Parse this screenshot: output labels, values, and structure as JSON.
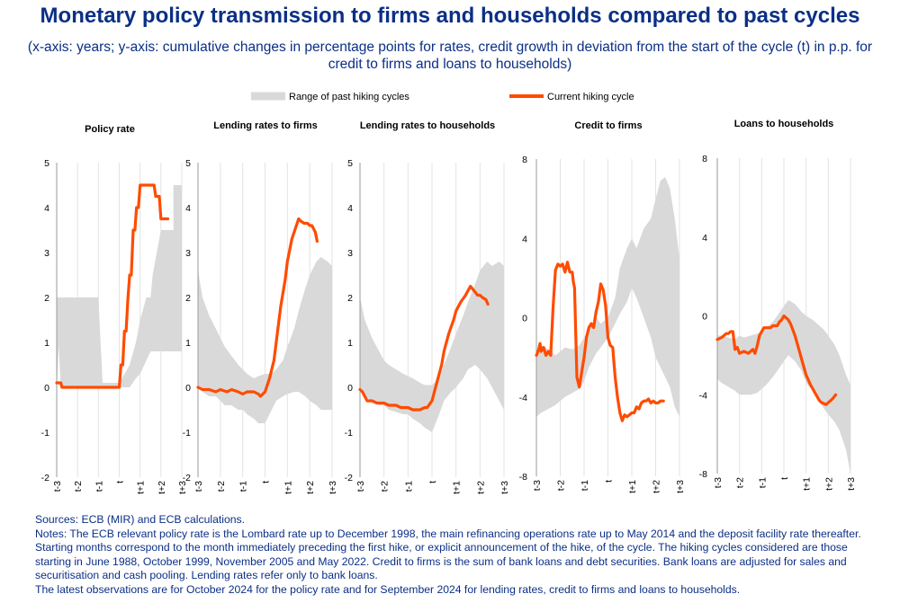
{
  "title": "Monetary policy transmission to firms and households compared to past cycles",
  "subtitle": "(x-axis: years; y-axis: cumulative changes in percentage points for rates, credit growth in deviation from the start of the cycle (t) in p.p. for credit to firms and loans to households)",
  "legend": {
    "range_label": "Range of past hiking cycles",
    "current_label": "Current hiking cycle",
    "range_color": "#d9d9d9",
    "current_color": "#ff4b00"
  },
  "notes": {
    "sources": "Sources: ECB (MIR) and ECB calculations.",
    "body": "Notes: The ECB relevant policy rate is the Lombard rate up to December 1998, the main refinancing operations rate up to May 2014 and the deposit facility rate thereafter. Starting months correspond to the month immediately preceding the first hike, or explicit announcement of the hike, of the cycle. The hiking cycles considered are those starting in June 1988, October 1999, November 2005 and May 2022. Credit to firms is the sum of bank loans and debt securities. Bank loans are adjusted for sales and securitisation and cash pooling. Lending rates refer only to bank loans.",
    "latest": "The latest observations are for October 2024 for the policy rate and for September 2024 for lending rates, credit to firms and loans to households."
  },
  "chart_data": [
    {
      "type": "area",
      "title": "Policy rate",
      "categories": [
        "t-3",
        "t-2",
        "t-1",
        "t",
        "t+1",
        "t+2",
        "t+3"
      ],
      "x_range": [
        -3,
        3
      ],
      "ylim": [
        -2,
        5
      ],
      "yticks": [
        -2,
        -1,
        0,
        1,
        2,
        3,
        4,
        5
      ],
      "grid": "vertical",
      "range_band": {
        "x": [
          -3,
          -2.9,
          -2.8,
          -1.0,
          -1.0,
          -0.8,
          0,
          0.5,
          0.8,
          1.0,
          1.3,
          1.5,
          1.6,
          1.8,
          2.0,
          2.3,
          2.6,
          2.6,
          3.0
        ],
        "upper": [
          2.0,
          2.0,
          2.0,
          2.0,
          2.0,
          0.1,
          0.1,
          0.5,
          1.0,
          1.5,
          2.0,
          2.0,
          2.5,
          3.0,
          3.5,
          3.5,
          3.5,
          4.5,
          4.5
        ],
        "lower": [
          0.0,
          0.9,
          0.0,
          0.0,
          0.0,
          0.0,
          0.0,
          0.0,
          0.2,
          0.3,
          0.6,
          0.8,
          0.8,
          0.8,
          0.8,
          0.8,
          0.8,
          0.8,
          0.8
        ]
      },
      "current": {
        "x": [
          -3.0,
          -2.8,
          -2.75,
          -2.5,
          -2.0,
          -1.5,
          -1.0,
          -0.5,
          0,
          0.08,
          0.17,
          0.25,
          0.33,
          0.42,
          0.5,
          0.58,
          0.67,
          0.75,
          0.83,
          0.92,
          1.0,
          1.08,
          1.17,
          1.25,
          1.33,
          1.42,
          1.5,
          1.58,
          1.67,
          1.75,
          1.83,
          1.92,
          2.0,
          2.08,
          2.17,
          2.25,
          2.33
        ],
        "values": [
          0.1,
          0.1,
          0.0,
          0.0,
          0.0,
          0.0,
          0.0,
          0.0,
          0.0,
          0.5,
          0.5,
          1.25,
          1.25,
          2.0,
          2.5,
          2.5,
          3.5,
          3.5,
          4.0,
          4.0,
          4.5,
          4.5,
          4.5,
          4.5,
          4.5,
          4.5,
          4.5,
          4.5,
          4.5,
          4.25,
          4.25,
          4.25,
          3.75,
          3.75,
          3.75,
          3.75,
          3.75
        ]
      }
    },
    {
      "type": "area",
      "title": "Lending rates to firms",
      "categories": [
        "t-3",
        "t-2",
        "t-1",
        "t",
        "t+1",
        "t+2",
        "t+3"
      ],
      "x_range": [
        -3,
        3
      ],
      "ylim": [
        -2,
        5
      ],
      "yticks": [
        -2,
        -1,
        0,
        1,
        2,
        3,
        4,
        5
      ],
      "grid": "vertical",
      "range_band": {
        "x": [
          -3.0,
          -2.8,
          -2.5,
          -2.2,
          -2.0,
          -1.8,
          -1.5,
          -1.2,
          -1.0,
          -0.8,
          -0.5,
          -0.3,
          0,
          0.3,
          0.5,
          0.8,
          1.0,
          1.3,
          1.5,
          1.8,
          2.0,
          2.3,
          2.5,
          2.8,
          3.0
        ],
        "upper": [
          2.6,
          2.0,
          1.6,
          1.3,
          1.1,
          0.9,
          0.7,
          0.5,
          0.4,
          0.3,
          0.2,
          0.25,
          0.3,
          0.3,
          0.4,
          0.6,
          0.9,
          1.3,
          1.7,
          2.2,
          2.5,
          2.8,
          2.9,
          2.8,
          2.7
        ],
        "lower": [
          0.0,
          -0.1,
          -0.2,
          -0.2,
          -0.3,
          -0.4,
          -0.4,
          -0.5,
          -0.5,
          -0.6,
          -0.7,
          -0.8,
          -0.8,
          -0.5,
          -0.3,
          -0.2,
          -0.15,
          -0.1,
          -0.1,
          -0.2,
          -0.3,
          -0.4,
          -0.5,
          -0.5,
          -0.5
        ]
      },
      "current": {
        "x": [
          -3.0,
          -2.8,
          -2.5,
          -2.2,
          -2.0,
          -1.7,
          -1.5,
          -1.2,
          -1.0,
          -0.8,
          -0.5,
          -0.3,
          -0.2,
          0,
          0.2,
          0.4,
          0.5,
          0.7,
          0.9,
          1.0,
          1.2,
          1.4,
          1.5,
          1.6,
          1.75,
          1.9,
          2.0,
          2.1,
          2.25,
          2.33
        ],
        "values": [
          0.0,
          -0.05,
          -0.05,
          -0.1,
          -0.05,
          -0.1,
          -0.05,
          -0.1,
          -0.15,
          -0.1,
          -0.1,
          -0.15,
          -0.2,
          -0.1,
          0.2,
          0.6,
          1.0,
          1.8,
          2.4,
          2.8,
          3.3,
          3.6,
          3.75,
          3.7,
          3.65,
          3.65,
          3.6,
          3.6,
          3.45,
          3.25
        ]
      }
    },
    {
      "type": "area",
      "title": "Lending rates to households",
      "categories": [
        "t-3",
        "t-2",
        "t-1",
        "t",
        "t+1",
        "t+2",
        "t+3"
      ],
      "x_range": [
        -3,
        3
      ],
      "ylim": [
        -2,
        5
      ],
      "yticks": [
        -2,
        -1,
        0,
        1,
        2,
        3,
        4,
        5
      ],
      "grid": "vertical",
      "range_band": {
        "x": [
          -3.0,
          -2.8,
          -2.5,
          -2.2,
          -2.0,
          -1.8,
          -1.5,
          -1.2,
          -1.0,
          -0.8,
          -0.5,
          -0.3,
          0,
          0.3,
          0.5,
          0.8,
          1.0,
          1.3,
          1.5,
          1.8,
          2.0,
          2.3,
          2.5,
          2.8,
          3.0
        ],
        "upper": [
          2.0,
          1.5,
          1.1,
          0.8,
          0.6,
          0.5,
          0.4,
          0.3,
          0.25,
          0.2,
          0.1,
          0.05,
          0.05,
          0.2,
          0.5,
          0.9,
          1.2,
          1.6,
          1.9,
          2.3,
          2.6,
          2.8,
          2.7,
          2.8,
          2.7
        ],
        "lower": [
          0.0,
          -0.2,
          -0.3,
          -0.4,
          -0.4,
          -0.5,
          -0.55,
          -0.6,
          -0.6,
          -0.7,
          -0.8,
          -0.9,
          -1.0,
          -0.6,
          -0.3,
          -0.1,
          0.0,
          0.2,
          0.4,
          0.5,
          0.4,
          0.2,
          0.0,
          -0.3,
          -0.5
        ]
      },
      "current": {
        "x": [
          -3.0,
          -2.9,
          -2.8,
          -2.7,
          -2.5,
          -2.3,
          -2.0,
          -1.8,
          -1.5,
          -1.3,
          -1.0,
          -0.8,
          -0.5,
          -0.3,
          -0.2,
          0,
          0.2,
          0.4,
          0.5,
          0.7,
          0.9,
          1.0,
          1.2,
          1.4,
          1.5,
          1.6,
          1.75,
          1.9,
          2.0,
          2.1,
          2.25,
          2.33
        ],
        "values": [
          -0.05,
          -0.1,
          -0.2,
          -0.3,
          -0.3,
          -0.35,
          -0.35,
          -0.4,
          -0.4,
          -0.45,
          -0.45,
          -0.5,
          -0.5,
          -0.45,
          -0.45,
          -0.3,
          0.1,
          0.5,
          0.8,
          1.2,
          1.5,
          1.7,
          1.9,
          2.05,
          2.15,
          2.25,
          2.15,
          2.05,
          2.05,
          2.0,
          1.95,
          1.85
        ]
      }
    },
    {
      "type": "area",
      "title": "Credit to firms",
      "categories": [
        "t-3",
        "t-2",
        "t-1",
        "t",
        "t+1",
        "t+2",
        "t+3"
      ],
      "x_range": [
        -3,
        3
      ],
      "ylim": [
        -8,
        8
      ],
      "yticks": [
        -8,
        -4,
        0,
        4,
        8
      ],
      "grid": "vertical",
      "range_band": {
        "x": [
          -3.0,
          -2.8,
          -2.5,
          -2.2,
          -2.0,
          -1.8,
          -1.5,
          -1.2,
          -1.0,
          -0.8,
          -0.5,
          -0.3,
          0,
          0.3,
          0.5,
          0.8,
          1.0,
          1.2,
          1.5,
          1.8,
          2.0,
          2.2,
          2.4,
          2.6,
          2.8,
          3.0
        ],
        "upper": [
          -1.8,
          -1.4,
          -1.6,
          -1.9,
          -1.7,
          -1.5,
          -1.6,
          -1.4,
          -1.0,
          -0.6,
          0.0,
          -0.3,
          0.0,
          1.0,
          2.5,
          3.5,
          4.0,
          3.5,
          4.5,
          5.0,
          6.0,
          6.9,
          7.1,
          6.5,
          5.0,
          3.0
        ],
        "lower": [
          -5.0,
          -4.8,
          -4.6,
          -4.4,
          -4.2,
          -4.0,
          -3.8,
          -3.6,
          -3.2,
          -2.5,
          -1.8,
          -1.5,
          -1.0,
          -0.3,
          0.2,
          0.8,
          1.5,
          1.0,
          0.0,
          -1.0,
          -2.0,
          -2.5,
          -3.0,
          -3.5,
          -4.5,
          -5.0
        ]
      },
      "current": {
        "x": [
          -3.0,
          -2.9,
          -2.85,
          -2.8,
          -2.7,
          -2.6,
          -2.5,
          -2.4,
          -2.3,
          -2.2,
          -2.1,
          -2.0,
          -1.9,
          -1.8,
          -1.7,
          -1.6,
          -1.5,
          -1.45,
          -1.4,
          -1.3,
          -1.2,
          -1.0,
          -0.9,
          -0.8,
          -0.7,
          -0.6,
          -0.5,
          -0.4,
          -0.3,
          -0.2,
          -0.1,
          0,
          0.1,
          0.2,
          0.3,
          0.4,
          0.5,
          0.6,
          0.7,
          0.8,
          0.9,
          1.0,
          1.1,
          1.2,
          1.3,
          1.4,
          1.5,
          1.6,
          1.7,
          1.8,
          1.9,
          2.0,
          2.1,
          2.2,
          2.33
        ],
        "values": [
          -1.9,
          -1.6,
          -1.3,
          -1.7,
          -1.5,
          -1.9,
          -1.7,
          -1.9,
          0.5,
          2.4,
          2.7,
          2.6,
          2.7,
          2.3,
          2.8,
          2.3,
          2.3,
          1.8,
          1.5,
          -3.0,
          -3.5,
          -2.0,
          -1.0,
          -0.5,
          -0.3,
          -0.5,
          0.3,
          0.8,
          1.7,
          1.4,
          0.6,
          -1.0,
          -1.4,
          -1.5,
          -3.0,
          -4.0,
          -4.8,
          -5.2,
          -4.9,
          -5.0,
          -4.9,
          -4.8,
          -4.8,
          -4.5,
          -4.6,
          -4.3,
          -4.2,
          -4.2,
          -4.1,
          -4.3,
          -4.2,
          -4.3,
          -4.3,
          -4.2,
          -4.2
        ]
      }
    },
    {
      "type": "area",
      "title": "Loans to households",
      "categories": [
        "t-3",
        "t-2",
        "t-1",
        "t",
        "t+1",
        "t+2",
        "t+3"
      ],
      "x_range": [
        -3,
        3
      ],
      "ylim": [
        -8,
        8
      ],
      "yticks": [
        -8,
        -4,
        0,
        4,
        8
      ],
      "grid": "vertical",
      "range_band": {
        "x": [
          -3.0,
          -2.8,
          -2.5,
          -2.2,
          -2.0,
          -1.8,
          -1.5,
          -1.2,
          -1.0,
          -0.8,
          -0.5,
          -0.3,
          0,
          0.2,
          0.5,
          0.8,
          1.0,
          1.3,
          1.5,
          1.8,
          2.0,
          2.3,
          2.5,
          2.8,
          3.0
        ],
        "upper": [
          -1.0,
          -1.0,
          -1.1,
          -1.2,
          -1.0,
          -1.1,
          -1.0,
          -0.9,
          -0.8,
          -0.6,
          -0.3,
          0.0,
          0.5,
          0.8,
          0.6,
          0.2,
          0.0,
          -0.2,
          -0.4,
          -0.7,
          -1.0,
          -1.5,
          -2.0,
          -3.0,
          -3.5
        ],
        "lower": [
          -3.2,
          -3.4,
          -3.6,
          -3.8,
          -4.0,
          -4.0,
          -4.0,
          -3.9,
          -3.7,
          -3.5,
          -3.1,
          -2.8,
          -2.3,
          -2.0,
          -2.3,
          -2.8,
          -3.4,
          -3.8,
          -4.2,
          -4.7,
          -5.0,
          -5.4,
          -5.8,
          -6.8,
          -8.0
        ]
      },
      "current": {
        "x": [
          -3.0,
          -2.8,
          -2.6,
          -2.5,
          -2.4,
          -2.3,
          -2.2,
          -2.1,
          -2.0,
          -1.8,
          -1.6,
          -1.5,
          -1.4,
          -1.3,
          -1.2,
          -1.1,
          -1.0,
          -0.9,
          -0.8,
          -0.6,
          -0.5,
          -0.3,
          -0.2,
          -0.1,
          0,
          0.1,
          0.2,
          0.3,
          0.4,
          0.5,
          0.6,
          0.7,
          0.8,
          0.9,
          1.0,
          1.2,
          1.3,
          1.4,
          1.5,
          1.6,
          1.7,
          1.8,
          1.9,
          2.0,
          2.1,
          2.2,
          2.33
        ],
        "values": [
          -1.2,
          -1.1,
          -0.9,
          -0.9,
          -0.8,
          -0.8,
          -1.7,
          -1.6,
          -1.9,
          -1.8,
          -1.9,
          -1.8,
          -1.7,
          -1.9,
          -1.5,
          -1.0,
          -0.8,
          -0.6,
          -0.6,
          -0.6,
          -0.5,
          -0.5,
          -0.3,
          -0.2,
          0.0,
          -0.1,
          -0.2,
          -0.4,
          -0.7,
          -1.0,
          -1.4,
          -1.8,
          -2.2,
          -2.6,
          -3.0,
          -3.5,
          -3.7,
          -3.9,
          -4.1,
          -4.3,
          -4.4,
          -4.45,
          -4.5,
          -4.4,
          -4.3,
          -4.2,
          -4.0
        ]
      }
    }
  ]
}
